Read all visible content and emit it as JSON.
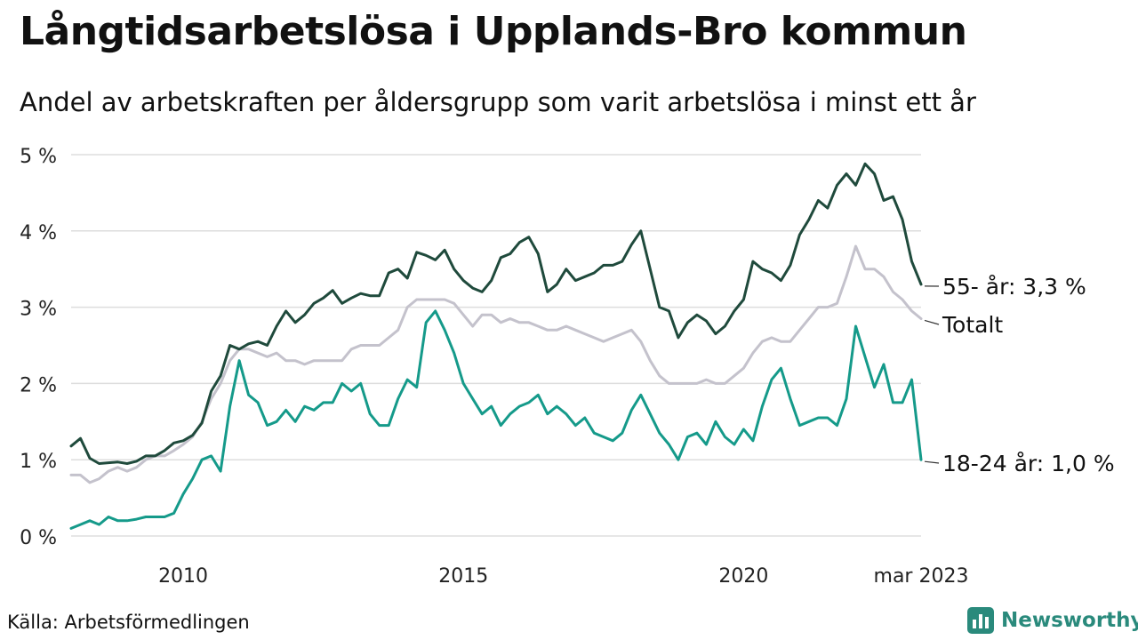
{
  "header": {
    "title": "Långtidsarbetslösa i Upplands-Bro kommun",
    "subtitle": "Andel av arbetskraften per åldersgrupp som varit arbetslösa i minst ett år"
  },
  "footer": {
    "source": "Källa: Arbetsförmedlingen",
    "brand": "Newsworthy"
  },
  "colors": {
    "older": "#1f4a3c",
    "total": "#c4c2cc",
    "young": "#159a8a",
    "grid": "#dddddd",
    "brand": "#2a8a7c"
  },
  "chart_data": {
    "type": "line",
    "ylim": [
      0,
      5
    ],
    "grid": true,
    "y_ticks": [
      "0 %",
      "1 %",
      "2 %",
      "3 %",
      "4 %",
      "5 %"
    ],
    "x_ticks": [
      "2010",
      "2015",
      "2020",
      "mar 2023"
    ],
    "end_labels": {
      "older": "55- år: 3,3 %",
      "total": "Totalt",
      "young": "18-24 år: 1,0 %"
    },
    "x_start": "2008-01",
    "x_end": "2023-03",
    "series": [
      {
        "key": "older",
        "points": [
          [
            "2008-01",
            1.18
          ],
          [
            "2008-03",
            1.28
          ],
          [
            "2008-05",
            1.02
          ],
          [
            "2008-07",
            0.95
          ],
          [
            "2008-09",
            0.96
          ],
          [
            "2008-11",
            0.97
          ],
          [
            "2009-01",
            0.95
          ],
          [
            "2009-03",
            0.98
          ],
          [
            "2009-05",
            1.05
          ],
          [
            "2009-07",
            1.05
          ],
          [
            "2009-09",
            1.12
          ],
          [
            "2009-11",
            1.22
          ],
          [
            "2010-01",
            1.25
          ],
          [
            "2010-03",
            1.32
          ],
          [
            "2010-05",
            1.48
          ],
          [
            "2010-07",
            1.9
          ],
          [
            "2010-09",
            2.1
          ],
          [
            "2010-11",
            2.5
          ],
          [
            "2011-01",
            2.45
          ],
          [
            "2011-03",
            2.52
          ],
          [
            "2011-05",
            2.55
          ],
          [
            "2011-07",
            2.5
          ],
          [
            "2011-09",
            2.75
          ],
          [
            "2011-11",
            2.95
          ],
          [
            "2012-01",
            2.8
          ],
          [
            "2012-03",
            2.9
          ],
          [
            "2012-05",
            3.05
          ],
          [
            "2012-07",
            3.12
          ],
          [
            "2012-09",
            3.22
          ],
          [
            "2012-11",
            3.05
          ],
          [
            "2013-01",
            3.12
          ],
          [
            "2013-03",
            3.18
          ],
          [
            "2013-05",
            3.15
          ],
          [
            "2013-07",
            3.15
          ],
          [
            "2013-09",
            3.45
          ],
          [
            "2013-11",
            3.5
          ],
          [
            "2014-01",
            3.38
          ],
          [
            "2014-03",
            3.72
          ],
          [
            "2014-05",
            3.68
          ],
          [
            "2014-07",
            3.62
          ],
          [
            "2014-09",
            3.75
          ],
          [
            "2014-11",
            3.5
          ],
          [
            "2015-01",
            3.35
          ],
          [
            "2015-03",
            3.25
          ],
          [
            "2015-05",
            3.2
          ],
          [
            "2015-07",
            3.35
          ],
          [
            "2015-09",
            3.65
          ],
          [
            "2015-11",
            3.7
          ],
          [
            "2016-01",
            3.85
          ],
          [
            "2016-03",
            3.92
          ],
          [
            "2016-05",
            3.7
          ],
          [
            "2016-07",
            3.2
          ],
          [
            "2016-09",
            3.3
          ],
          [
            "2016-11",
            3.5
          ],
          [
            "2017-01",
            3.35
          ],
          [
            "2017-03",
            3.4
          ],
          [
            "2017-05",
            3.45
          ],
          [
            "2017-07",
            3.55
          ],
          [
            "2017-09",
            3.55
          ],
          [
            "2017-11",
            3.6
          ],
          [
            "2018-01",
            3.82
          ],
          [
            "2018-03",
            4.0
          ],
          [
            "2018-05",
            3.5
          ],
          [
            "2018-07",
            3.0
          ],
          [
            "2018-09",
            2.95
          ],
          [
            "2018-11",
            2.6
          ],
          [
            "2019-01",
            2.8
          ],
          [
            "2019-03",
            2.9
          ],
          [
            "2019-05",
            2.82
          ],
          [
            "2019-07",
            2.65
          ],
          [
            "2019-09",
            2.75
          ],
          [
            "2019-11",
            2.95
          ],
          [
            "2020-01",
            3.1
          ],
          [
            "2020-03",
            3.6
          ],
          [
            "2020-05",
            3.5
          ],
          [
            "2020-07",
            3.45
          ],
          [
            "2020-09",
            3.35
          ],
          [
            "2020-11",
            3.55
          ],
          [
            "2021-01",
            3.95
          ],
          [
            "2021-03",
            4.15
          ],
          [
            "2021-05",
            4.4
          ],
          [
            "2021-07",
            4.3
          ],
          [
            "2021-09",
            4.6
          ],
          [
            "2021-11",
            4.75
          ],
          [
            "2022-01",
            4.6
          ],
          [
            "2022-03",
            4.88
          ],
          [
            "2022-05",
            4.75
          ],
          [
            "2022-07",
            4.4
          ],
          [
            "2022-09",
            4.45
          ],
          [
            "2022-11",
            4.15
          ],
          [
            "2023-01",
            3.6
          ],
          [
            "2023-03",
            3.3
          ]
        ]
      },
      {
        "key": "total",
        "points": [
          [
            "2008-01",
            0.8
          ],
          [
            "2008-03",
            0.8
          ],
          [
            "2008-05",
            0.7
          ],
          [
            "2008-07",
            0.75
          ],
          [
            "2008-09",
            0.85
          ],
          [
            "2008-11",
            0.9
          ],
          [
            "2009-01",
            0.85
          ],
          [
            "2009-03",
            0.9
          ],
          [
            "2009-05",
            1.0
          ],
          [
            "2009-07",
            1.05
          ],
          [
            "2009-09",
            1.05
          ],
          [
            "2009-11",
            1.12
          ],
          [
            "2010-01",
            1.2
          ],
          [
            "2010-03",
            1.3
          ],
          [
            "2010-05",
            1.5
          ],
          [
            "2010-07",
            1.8
          ],
          [
            "2010-09",
            2.0
          ],
          [
            "2010-11",
            2.3
          ],
          [
            "2011-01",
            2.45
          ],
          [
            "2011-03",
            2.45
          ],
          [
            "2011-05",
            2.4
          ],
          [
            "2011-07",
            2.35
          ],
          [
            "2011-09",
            2.4
          ],
          [
            "2011-11",
            2.3
          ],
          [
            "2012-01",
            2.3
          ],
          [
            "2012-03",
            2.25
          ],
          [
            "2012-05",
            2.3
          ],
          [
            "2012-07",
            2.3
          ],
          [
            "2012-09",
            2.3
          ],
          [
            "2012-11",
            2.3
          ],
          [
            "2013-01",
            2.45
          ],
          [
            "2013-03",
            2.5
          ],
          [
            "2013-05",
            2.5
          ],
          [
            "2013-07",
            2.5
          ],
          [
            "2013-09",
            2.6
          ],
          [
            "2013-11",
            2.7
          ],
          [
            "2014-01",
            3.0
          ],
          [
            "2014-03",
            3.1
          ],
          [
            "2014-05",
            3.1
          ],
          [
            "2014-07",
            3.1
          ],
          [
            "2014-09",
            3.1
          ],
          [
            "2014-11",
            3.05
          ],
          [
            "2015-01",
            2.9
          ],
          [
            "2015-03",
            2.75
          ],
          [
            "2015-05",
            2.9
          ],
          [
            "2015-07",
            2.9
          ],
          [
            "2015-09",
            2.8
          ],
          [
            "2015-11",
            2.85
          ],
          [
            "2016-01",
            2.8
          ],
          [
            "2016-03",
            2.8
          ],
          [
            "2016-05",
            2.75
          ],
          [
            "2016-07",
            2.7
          ],
          [
            "2016-09",
            2.7
          ],
          [
            "2016-11",
            2.75
          ],
          [
            "2017-01",
            2.7
          ],
          [
            "2017-03",
            2.65
          ],
          [
            "2017-05",
            2.6
          ],
          [
            "2017-07",
            2.55
          ],
          [
            "2017-09",
            2.6
          ],
          [
            "2017-11",
            2.65
          ],
          [
            "2018-01",
            2.7
          ],
          [
            "2018-03",
            2.55
          ],
          [
            "2018-05",
            2.3
          ],
          [
            "2018-07",
            2.1
          ],
          [
            "2018-09",
            2.0
          ],
          [
            "2018-11",
            2.0
          ],
          [
            "2019-01",
            2.0
          ],
          [
            "2019-03",
            2.0
          ],
          [
            "2019-05",
            2.05
          ],
          [
            "2019-07",
            2.0
          ],
          [
            "2019-09",
            2.0
          ],
          [
            "2019-11",
            2.1
          ],
          [
            "2020-01",
            2.2
          ],
          [
            "2020-03",
            2.4
          ],
          [
            "2020-05",
            2.55
          ],
          [
            "2020-07",
            2.6
          ],
          [
            "2020-09",
            2.55
          ],
          [
            "2020-11",
            2.55
          ],
          [
            "2021-01",
            2.7
          ],
          [
            "2021-03",
            2.85
          ],
          [
            "2021-05",
            3.0
          ],
          [
            "2021-07",
            3.0
          ],
          [
            "2021-09",
            3.05
          ],
          [
            "2021-11",
            3.4
          ],
          [
            "2022-01",
            3.8
          ],
          [
            "2022-03",
            3.5
          ],
          [
            "2022-05",
            3.5
          ],
          [
            "2022-07",
            3.4
          ],
          [
            "2022-09",
            3.2
          ],
          [
            "2022-11",
            3.1
          ],
          [
            "2023-01",
            2.95
          ],
          [
            "2023-03",
            2.85
          ]
        ]
      },
      {
        "key": "young",
        "points": [
          [
            "2008-01",
            0.1
          ],
          [
            "2008-03",
            0.15
          ],
          [
            "2008-05",
            0.2
          ],
          [
            "2008-07",
            0.15
          ],
          [
            "2008-09",
            0.25
          ],
          [
            "2008-11",
            0.2
          ],
          [
            "2009-01",
            0.2
          ],
          [
            "2009-03",
            0.22
          ],
          [
            "2009-05",
            0.25
          ],
          [
            "2009-07",
            0.25
          ],
          [
            "2009-09",
            0.25
          ],
          [
            "2009-11",
            0.3
          ],
          [
            "2010-01",
            0.55
          ],
          [
            "2010-03",
            0.75
          ],
          [
            "2010-05",
            1.0
          ],
          [
            "2010-07",
            1.05
          ],
          [
            "2010-09",
            0.85
          ],
          [
            "2010-11",
            1.7
          ],
          [
            "2011-01",
            2.3
          ],
          [
            "2011-03",
            1.85
          ],
          [
            "2011-05",
            1.75
          ],
          [
            "2011-07",
            1.45
          ],
          [
            "2011-09",
            1.5
          ],
          [
            "2011-11",
            1.65
          ],
          [
            "2012-01",
            1.5
          ],
          [
            "2012-03",
            1.7
          ],
          [
            "2012-05",
            1.65
          ],
          [
            "2012-07",
            1.75
          ],
          [
            "2012-09",
            1.75
          ],
          [
            "2012-11",
            2.0
          ],
          [
            "2013-01",
            1.9
          ],
          [
            "2013-03",
            2.0
          ],
          [
            "2013-05",
            1.6
          ],
          [
            "2013-07",
            1.45
          ],
          [
            "2013-09",
            1.45
          ],
          [
            "2013-11",
            1.8
          ],
          [
            "2014-01",
            2.05
          ],
          [
            "2014-03",
            1.95
          ],
          [
            "2014-05",
            2.8
          ],
          [
            "2014-07",
            2.95
          ],
          [
            "2014-09",
            2.7
          ],
          [
            "2014-11",
            2.4
          ],
          [
            "2015-01",
            2.0
          ],
          [
            "2015-03",
            1.8
          ],
          [
            "2015-05",
            1.6
          ],
          [
            "2015-07",
            1.7
          ],
          [
            "2015-09",
            1.45
          ],
          [
            "2015-11",
            1.6
          ],
          [
            "2016-01",
            1.7
          ],
          [
            "2016-03",
            1.75
          ],
          [
            "2016-05",
            1.85
          ],
          [
            "2016-07",
            1.6
          ],
          [
            "2016-09",
            1.7
          ],
          [
            "2016-11",
            1.6
          ],
          [
            "2017-01",
            1.45
          ],
          [
            "2017-03",
            1.55
          ],
          [
            "2017-05",
            1.35
          ],
          [
            "2017-07",
            1.3
          ],
          [
            "2017-09",
            1.25
          ],
          [
            "2017-11",
            1.35
          ],
          [
            "2018-01",
            1.65
          ],
          [
            "2018-03",
            1.85
          ],
          [
            "2018-05",
            1.6
          ],
          [
            "2018-07",
            1.35
          ],
          [
            "2018-09",
            1.2
          ],
          [
            "2018-11",
            1.0
          ],
          [
            "2019-01",
            1.3
          ],
          [
            "2019-03",
            1.35
          ],
          [
            "2019-05",
            1.2
          ],
          [
            "2019-07",
            1.5
          ],
          [
            "2019-09",
            1.3
          ],
          [
            "2019-11",
            1.2
          ],
          [
            "2020-01",
            1.4
          ],
          [
            "2020-03",
            1.25
          ],
          [
            "2020-05",
            1.7
          ],
          [
            "2020-07",
            2.05
          ],
          [
            "2020-09",
            2.2
          ],
          [
            "2020-11",
            1.8
          ],
          [
            "2021-01",
            1.45
          ],
          [
            "2021-03",
            1.5
          ],
          [
            "2021-05",
            1.55
          ],
          [
            "2021-07",
            1.55
          ],
          [
            "2021-09",
            1.45
          ],
          [
            "2021-11",
            1.8
          ],
          [
            "2022-01",
            2.75
          ],
          [
            "2022-03",
            2.35
          ],
          [
            "2022-05",
            1.95
          ],
          [
            "2022-07",
            2.25
          ],
          [
            "2022-09",
            1.75
          ],
          [
            "2022-11",
            1.75
          ],
          [
            "2023-01",
            2.05
          ],
          [
            "2023-03",
            1.0
          ]
        ]
      }
    ]
  }
}
